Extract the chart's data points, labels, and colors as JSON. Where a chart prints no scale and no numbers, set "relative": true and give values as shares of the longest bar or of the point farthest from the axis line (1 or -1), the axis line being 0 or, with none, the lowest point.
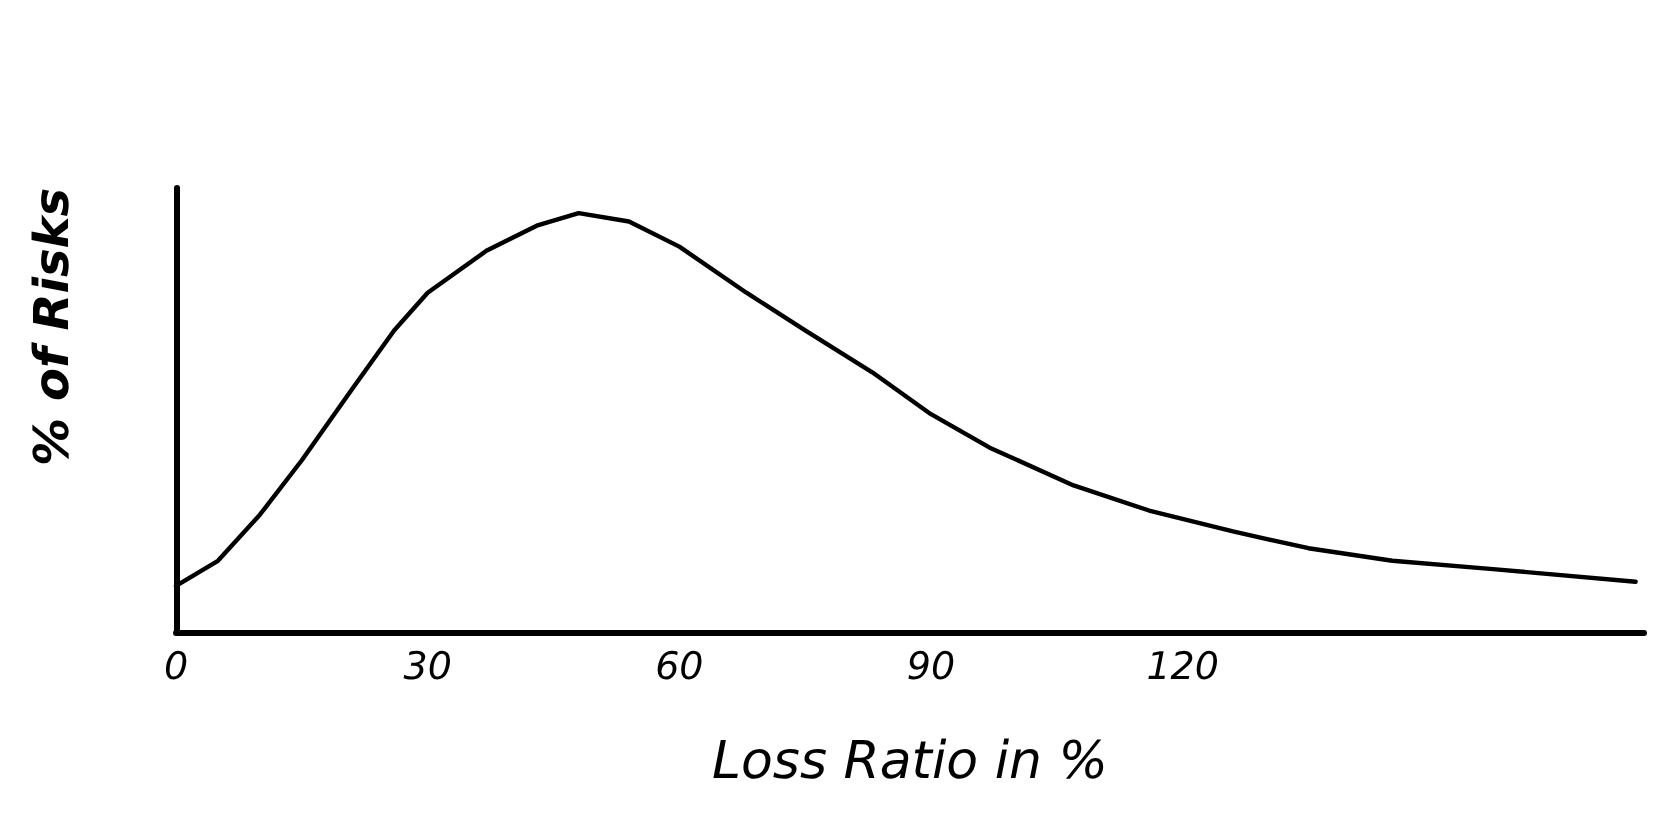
{
  "chart_data": {
    "type": "line",
    "xlabel": "Loss Ratio in %",
    "ylabel": "% of Risks",
    "relative": true,
    "x": [
      0,
      5,
      10,
      15,
      21,
      26,
      30,
      37,
      43,
      48,
      54,
      60,
      68,
      75,
      83,
      90,
      97,
      107,
      116,
      126,
      135,
      145,
      157,
      174
    ],
    "series": [
      {
        "color": "#000000",
        "values": [
          0.11,
          0.17,
          0.28,
          0.41,
          0.58,
          0.72,
          0.81,
          0.91,
          0.97,
          1,
          0.98,
          0.92,
          0.81,
          0.72,
          0.62,
          0.52,
          0.44,
          0.35,
          0.29,
          0.24,
          0.2,
          0.17,
          0.15,
          0.12
        ]
      }
    ],
    "xlim": [
      0,
      175
    ],
    "xticks": [
      0,
      30,
      60,
      90,
      120
    ],
    "marker": "none",
    "line_style": "solid"
  }
}
